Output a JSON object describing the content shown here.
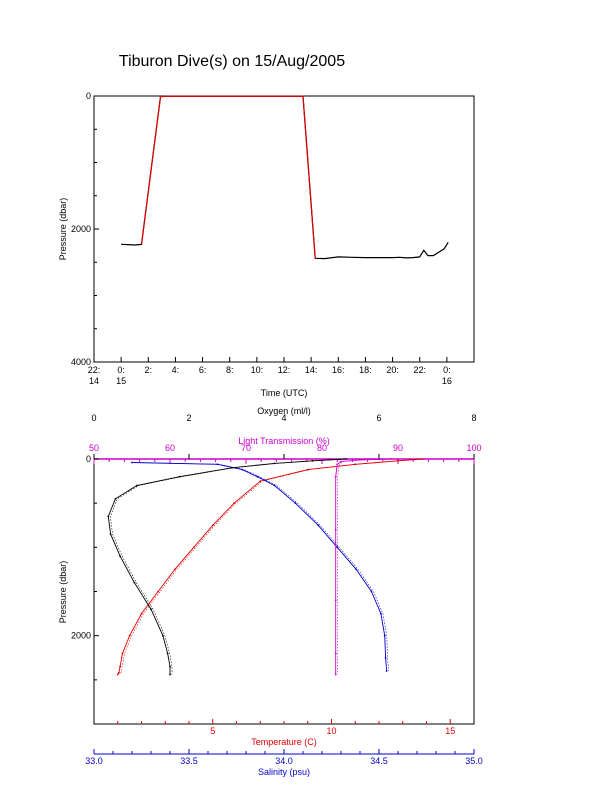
{
  "title": "Tiburon Dive(s) on 15/Aug/2005",
  "colors": {
    "axis": "#000000",
    "temperature": "#e00000",
    "salinity": "#0000cc",
    "oxygen": "#000000",
    "transmission": "#cc00cc"
  },
  "chart_data": [
    {
      "type": "line",
      "title": "Tiburon Dive(s) on 15/Aug/2005",
      "xlabel": "Time (UTC)",
      "ylabel": "Pressure (dbar)",
      "ylim": [
        4000,
        0
      ],
      "yticks": [
        0,
        2000,
        4000
      ],
      "ytick_labels": [
        "0",
        "2000",
        "4000"
      ],
      "xlim": [
        -2,
        26
      ],
      "xticks": [
        -2,
        0,
        2,
        4,
        6,
        8,
        10,
        12,
        14,
        16,
        18,
        20,
        22,
        24
      ],
      "xtick_labels": [
        "22:",
        "0:",
        "2:",
        "4:",
        "6:",
        "8:",
        "10:",
        "12:",
        "14:",
        "16:",
        "18:",
        "20:",
        "22:",
        "0:"
      ],
      "xtick_sublabels": [
        {
          "x": -2,
          "label": "14"
        },
        {
          "x": 0,
          "label": "15"
        },
        {
          "x": 24,
          "label": "16"
        }
      ],
      "series": [
        {
          "color": "#000000",
          "x": [
            0.0,
            0.5,
            1.0,
            1.5,
            2.9,
            3.3,
            13.4,
            14.3,
            15.0,
            16.0,
            17.0,
            18.0,
            19.0,
            20.0,
            20.5,
            21.0,
            21.5,
            22.0,
            22.3,
            22.6,
            23.0,
            23.4,
            23.8,
            24.1
          ],
          "y": [
            2230,
            2235,
            2240,
            2232,
            10,
            5,
            5,
            2440,
            2445,
            2420,
            2425,
            2430,
            2430,
            2430,
            2425,
            2435,
            2430,
            2420,
            2320,
            2400,
            2400,
            2350,
            2300,
            2200
          ]
        },
        {
          "color": "#e00000",
          "x": [
            1.5,
            2.9,
            3.3,
            13.4,
            14.3
          ],
          "y": [
            2232,
            10,
            5,
            5,
            2440
          ]
        }
      ]
    },
    {
      "type": "line",
      "ylabel": "Pressure (dbar)",
      "ylim": [
        3000,
        0
      ],
      "yticks": [
        0,
        2000
      ],
      "ytick_labels": [
        "0",
        "2000"
      ],
      "axes": {
        "oxygen": {
          "label": "Oxygen (ml/l)",
          "position": "top",
          "range": [
            0,
            8
          ],
          "ticks": [
            0,
            2,
            4,
            6,
            8
          ],
          "tick_labels": [
            "0",
            "2",
            "4",
            "6",
            "8"
          ],
          "color": "#000000"
        },
        "transmission": {
          "label": "Light Transmission (%)",
          "position": "top-inner",
          "range": [
            50,
            100
          ],
          "ticks": [
            50,
            60,
            70,
            80,
            90,
            100
          ],
          "tick_labels": [
            "50",
            "60",
            "70",
            "80",
            "90",
            "100"
          ],
          "color": "#cc00cc"
        },
        "temperature": {
          "label": "Temperature (C)",
          "position": "bottom",
          "range": [
            0,
            16
          ],
          "ticks": [
            5,
            10,
            15
          ],
          "tick_labels": [
            "5",
            "10",
            "15"
          ],
          "color": "#e00000"
        },
        "salinity": {
          "label": "Salinity (psu)",
          "position": "bottom-outer",
          "range": [
            33.0,
            35.0
          ],
          "ticks": [
            33.0,
            33.5,
            34.0,
            34.5,
            35.0
          ],
          "tick_labels": [
            "33.0",
            "33.5",
            "34.0",
            "34.5",
            "35.0"
          ],
          "color": "#0000cc"
        }
      },
      "series": [
        {
          "name": "Temperature (C)",
          "axis": "temperature",
          "color": "#e00000",
          "x": [
            13.8,
            12.8,
            11.0,
            9.0,
            7.0,
            5.9,
            5.0,
            4.2,
            3.4,
            2.7,
            2.0,
            1.5,
            1.2,
            1.1,
            1.05,
            1.0
          ],
          "y": [
            0,
            20,
            60,
            120,
            250,
            500,
            750,
            1000,
            1250,
            1500,
            1750,
            2000,
            2200,
            2350,
            2420,
            2440
          ]
        },
        {
          "name": "Salinity (psu)",
          "axis": "salinity",
          "color": "#0000cc",
          "x": [
            33.2,
            33.65,
            33.78,
            33.86,
            33.95,
            34.06,
            34.18,
            34.28,
            34.38,
            34.46,
            34.51,
            34.53,
            34.535,
            34.54
          ],
          "y": [
            40,
            60,
            120,
            200,
            300,
            500,
            750,
            1000,
            1250,
            1500,
            1750,
            2000,
            2250,
            2400
          ]
        },
        {
          "name": "Oxygen (ml/l)",
          "axis": "oxygen",
          "color": "#000000",
          "x": [
            5.3,
            4.6,
            3.8,
            2.9,
            1.8,
            0.9,
            0.45,
            0.3,
            0.35,
            0.55,
            0.85,
            1.2,
            1.45,
            1.55,
            1.6,
            1.6
          ],
          "y": [
            0,
            20,
            50,
            100,
            200,
            300,
            450,
            650,
            850,
            1100,
            1400,
            1700,
            2000,
            2200,
            2350,
            2440
          ]
        },
        {
          "name": "Light Transmission (%)",
          "axis": "transmission",
          "color": "#cc00cc",
          "x": [
            89.0,
            85.0,
            82.5,
            82.0,
            81.8,
            81.8,
            81.8,
            81.8,
            81.8
          ],
          "y": [
            0,
            10,
            30,
            60,
            200,
            800,
            1600,
            2200,
            2440
          ]
        }
      ]
    }
  ]
}
